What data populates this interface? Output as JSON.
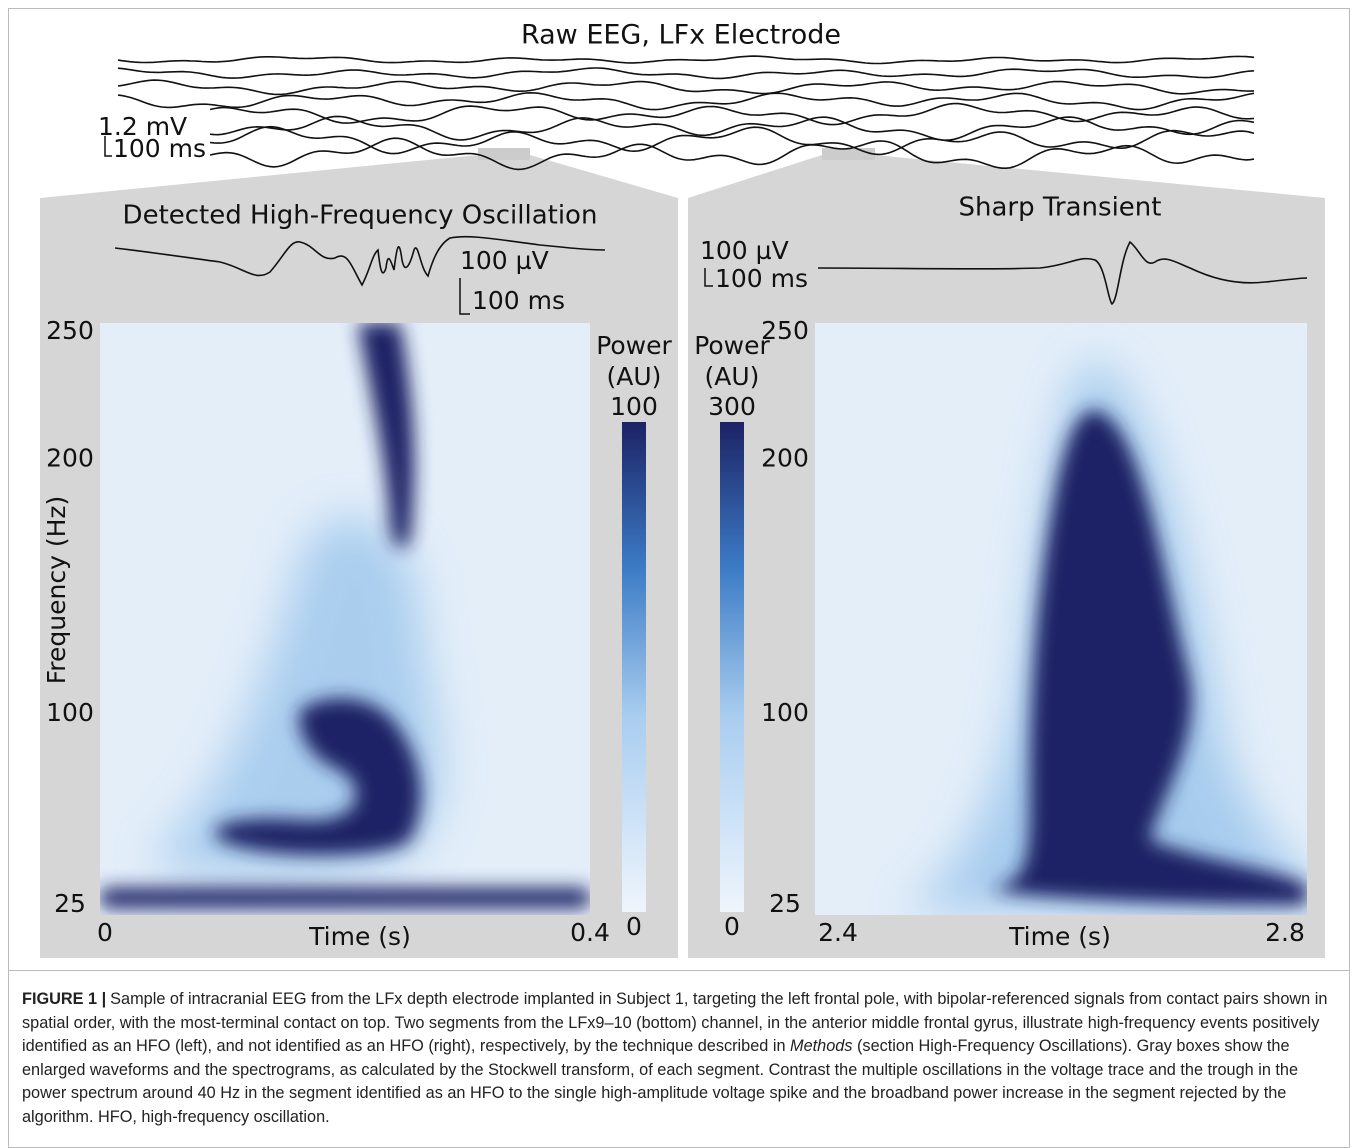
{
  "figure": {
    "raw_eeg": {
      "title": "Raw EEG, LFx Electrode",
      "scale_voltage": "1.2 mV",
      "scale_time": "100 ms"
    },
    "panels": [
      {
        "title": "Detected High-Frequency Oscillation",
        "scale_voltage": "100 µV",
        "scale_time": "100 ms",
        "y_axis_label": "Frequency (Hz)",
        "y_ticks": [
          250,
          200,
          100,
          25
        ],
        "x_axis_label": "Time (s)",
        "x_ticks": [
          0,
          0.4
        ],
        "colorbar_label": [
          "Power",
          "(AU)"
        ],
        "colorbar_ticks": [
          100,
          0
        ]
      },
      {
        "title": "Sharp Transient",
        "scale_voltage": "100 µV",
        "scale_time": "100 ms",
        "y_ticks": [
          250,
          200,
          100,
          25
        ],
        "x_axis_label": "Time (s)",
        "x_ticks": [
          2.4,
          2.8
        ],
        "colorbar_label": [
          "Power",
          "(AU)"
        ],
        "colorbar_ticks": [
          300,
          0
        ]
      }
    ]
  },
  "caption": {
    "label": "FIGURE 1 |",
    "text_before": "Sample of intracranial EEG from the LFx depth electrode implanted in Subject 1, targeting the left frontal pole, with bipolar-referenced signals from contact pairs shown in spatial order, with the most-terminal contact on top. Two segments from the LFx9–10 (bottom) channel, in the anterior middle frontal gyrus, illustrate high-frequency events positively identified as an HFO (left), and not identified as an HFO (right), respectively, by the technique described in ",
    "emphasis": "Methods",
    "text_after": " (section High-Frequency Oscillations). Gray boxes show the enlarged waveforms and the spectrograms, as calculated by the Stockwell transform, of each segment. Contrast the multiple oscillations in the voltage trace and the trough in the power spectrum around 40 Hz in the segment identified as an HFO to the single high-amplitude voltage spike and the broadband power increase in the segment rejected by the algorithm. HFO, high-frequency oscillation."
  }
}
